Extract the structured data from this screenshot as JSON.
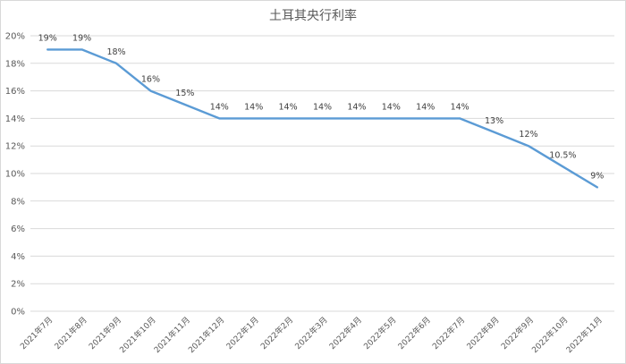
{
  "chart_data": {
    "type": "line",
    "title": "土耳其央行利率",
    "xlabel": "",
    "ylabel": "",
    "ylim": [
      0,
      20
    ],
    "yticks": [
      "0%",
      "2%",
      "4%",
      "6%",
      "8%",
      "10%",
      "12%",
      "14%",
      "16%",
      "18%",
      "20%"
    ],
    "grid": true,
    "legend": "none",
    "categories": [
      "2021年7月",
      "2021年8月",
      "2021年9月",
      "2021年10月",
      "2021年11月",
      "2021年12月",
      "2022年1月",
      "2022年2月",
      "2022年3月",
      "2022年4月",
      "2022年5月",
      "2022年6月",
      "2022年7月",
      "2022年8月",
      "2022年9月",
      "2022年10月",
      "2022年11月"
    ],
    "series": [
      {
        "values": [
          19,
          19,
          18,
          16,
          15,
          14,
          14,
          14,
          14,
          14,
          14,
          14,
          14,
          13,
          12,
          10.5,
          9
        ],
        "labels": [
          "19%",
          "19%",
          "18%",
          "16%",
          "15%",
          "14%",
          "14%",
          "14%",
          "14%",
          "14%",
          "14%",
          "14%",
          "14%",
          "13%",
          "12%",
          "10.5%",
          "9%"
        ]
      }
    ],
    "colors": {
      "line": "#5b9bd5",
      "grid": "#d9d9d9",
      "text": "#595959"
    }
  }
}
